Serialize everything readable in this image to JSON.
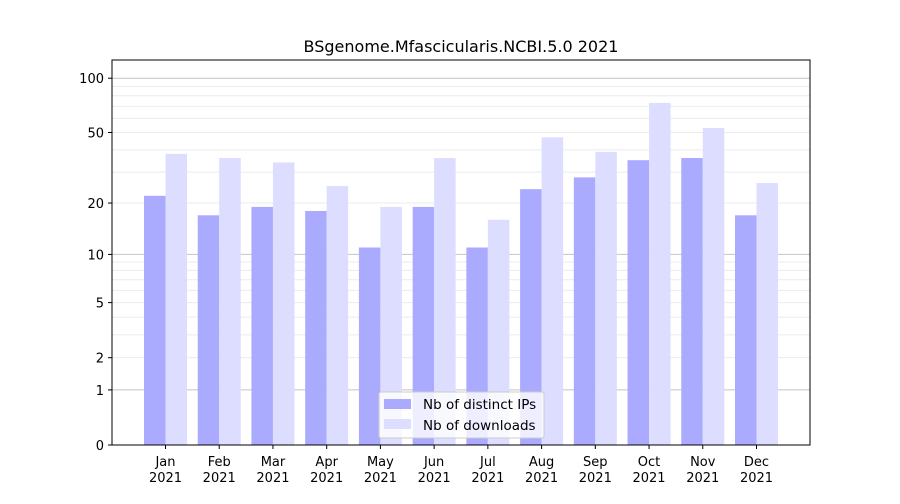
{
  "chart_data": {
    "type": "bar",
    "title": "BSgenome.Mfascicularis.NCBI.5.0 2021",
    "xlabel": "",
    "ylabel": "",
    "yscale": "log(1+y)",
    "ylim": [
      0,
      126
    ],
    "yticks": [
      0,
      1,
      2,
      5,
      10,
      20,
      50,
      100
    ],
    "grid": true,
    "legend_position": "bottom-center",
    "categories": [
      "Jan\n2021",
      "Feb\n2021",
      "Mar\n2021",
      "Apr\n2021",
      "May\n2021",
      "Jun\n2021",
      "Jul\n2021",
      "Aug\n2021",
      "Sep\n2021",
      "Oct\n2021",
      "Nov\n2021",
      "Dec\n2021"
    ],
    "series": [
      {
        "name": "Nb of distinct IPs",
        "color": "#aaaaff",
        "values": [
          22,
          17,
          19,
          18,
          11,
          19,
          11,
          24,
          28,
          35,
          36,
          17
        ]
      },
      {
        "name": "Nb of downloads",
        "color": "#ddddff",
        "values": [
          38,
          36,
          34,
          25,
          19,
          36,
          16,
          47,
          39,
          73,
          53,
          26
        ]
      }
    ]
  }
}
